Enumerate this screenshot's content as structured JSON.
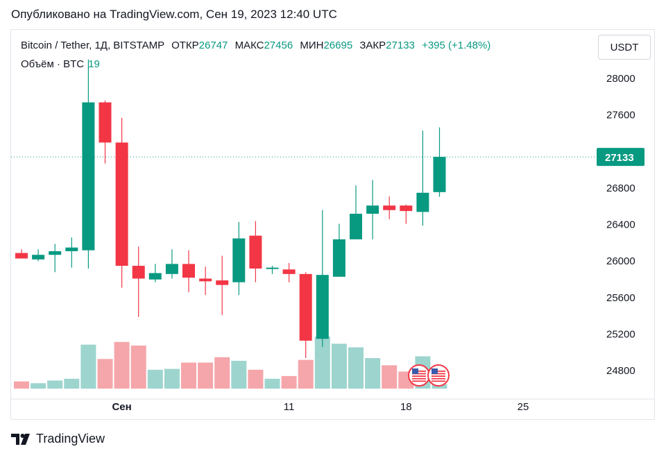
{
  "published": "Опубликовано на TradingView.com, Сен 19, 2023 12:40 UTC",
  "legend": {
    "symbol": "Bitcoin / Tether, 1Д, BITSTAMP",
    "open_label": "ОТКР",
    "open": "26747",
    "high_label": "МАКС",
    "high": "27456",
    "low_label": "МИН",
    "low": "26695",
    "close_label": "ЗАКР",
    "close": "27133",
    "change": "+395 (+1.48%)"
  },
  "volume_legend": {
    "label": "Объём · BTC",
    "value": "19"
  },
  "currency_button": "USDT",
  "brand": "TradingView",
  "colors": {
    "up": "#089981",
    "down": "#f23645",
    "vol_up": "#9dd4ce",
    "vol_down": "#f5a6aa"
  },
  "chart_data": {
    "type": "candlestick",
    "ylim": [
      24700,
      28300
    ],
    "y_ticks": [
      24800,
      25200,
      25600,
      26000,
      26400,
      26800,
      27200,
      27600,
      28000
    ],
    "last_price": 27133,
    "x_labels": [
      {
        "text": "Сен",
        "index": 6
      },
      {
        "text": "11",
        "index": 16
      },
      {
        "text": "18",
        "index": 23
      },
      {
        "text": "25",
        "index": 30
      }
    ],
    "candles": [
      {
        "o": 26080,
        "h": 26120,
        "l": 26040,
        "c": 26020,
        "v": 0.8
      },
      {
        "o": 26010,
        "h": 26120,
        "l": 25990,
        "c": 26060,
        "v": 0.6
      },
      {
        "o": 26060,
        "h": 26180,
        "l": 25870,
        "c": 26100,
        "v": 0.9
      },
      {
        "o": 26100,
        "h": 26250,
        "l": 25920,
        "c": 26140,
        "v": 1.1
      },
      {
        "o": 26110,
        "h": 28200,
        "l": 25910,
        "c": 27730,
        "v": 4.9
      },
      {
        "o": 27730,
        "h": 27750,
        "l": 27060,
        "c": 27290,
        "v": 3.3
      },
      {
        "o": 27290,
        "h": 27560,
        "l": 25700,
        "c": 25940,
        "v": 5.2
      },
      {
        "o": 25940,
        "h": 26150,
        "l": 25380,
        "c": 25800,
        "v": 4.8
      },
      {
        "o": 25790,
        "h": 25960,
        "l": 25760,
        "c": 25860,
        "v": 2.1
      },
      {
        "o": 25850,
        "h": 26120,
        "l": 25800,
        "c": 25960,
        "v": 2.2
      },
      {
        "o": 25960,
        "h": 26110,
        "l": 25650,
        "c": 25810,
        "v": 2.9
      },
      {
        "o": 25800,
        "h": 25930,
        "l": 25620,
        "c": 25770,
        "v": 2.9
      },
      {
        "o": 25780,
        "h": 26050,
        "l": 25400,
        "c": 25730,
        "v": 3.5
      },
      {
        "o": 25760,
        "h": 26420,
        "l": 25620,
        "c": 26240,
        "v": 3.1
      },
      {
        "o": 26270,
        "h": 26430,
        "l": 25760,
        "c": 25910,
        "v": 2.1
      },
      {
        "o": 25910,
        "h": 25940,
        "l": 25850,
        "c": 25920,
        "v": 1.1
      },
      {
        "o": 25900,
        "h": 25970,
        "l": 25760,
        "c": 25850,
        "v": 1.4
      },
      {
        "o": 25850,
        "h": 25870,
        "l": 24930,
        "c": 25120,
        "v": 3.2
      },
      {
        "o": 25140,
        "h": 26550,
        "l": 25050,
        "c": 25840,
        "v": 5.8
      },
      {
        "o": 25820,
        "h": 26400,
        "l": 25820,
        "c": 26230,
        "v": 5.0
      },
      {
        "o": 26230,
        "h": 26820,
        "l": 26230,
        "c": 26510,
        "v": 4.6
      },
      {
        "o": 26510,
        "h": 26880,
        "l": 26230,
        "c": 26600,
        "v": 3.4
      },
      {
        "o": 26600,
        "h": 26700,
        "l": 26450,
        "c": 26550,
        "v": 2.6
      },
      {
        "o": 26600,
        "h": 26610,
        "l": 26400,
        "c": 26540,
        "v": 1.9
      },
      {
        "o": 26530,
        "h": 27420,
        "l": 26380,
        "c": 26740,
        "v": 3.6
      },
      {
        "o": 26747,
        "h": 27456,
        "l": 26695,
        "c": 27133,
        "v": 0.5
      }
    ]
  }
}
